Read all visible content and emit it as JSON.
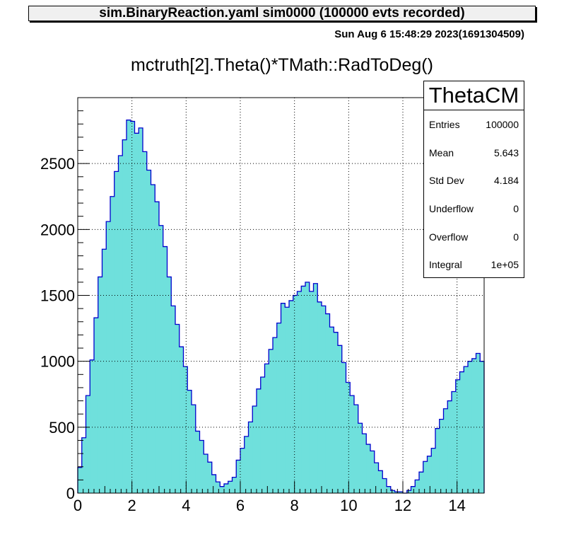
{
  "canvas": {
    "title": "sim.BinaryReaction.yaml  sim0000 (100000 evts recorded)",
    "timestamp": "Sun Aug  6 15:48:29 2023(1691304509)"
  },
  "stats_box": {
    "name": "ThetaCM",
    "rows": [
      {
        "label": "Entries",
        "value": "100000"
      },
      {
        "label": "Mean",
        "value": "5.643"
      },
      {
        "label": "Std Dev",
        "value": "4.184"
      },
      {
        "label": "Underflow",
        "value": "0"
      },
      {
        "label": "Overflow",
        "value": "0"
      },
      {
        "label": "Integral",
        "value": "1e+05"
      }
    ]
  },
  "colors": {
    "fill": "#6fe0dc",
    "line": "#0000cc",
    "grid": "#000000"
  },
  "chart_data": {
    "type": "bar",
    "title": "mctruth[2].Theta()*TMath::RadToDeg()",
    "xlim": [
      0,
      15
    ],
    "ylim": [
      0,
      3000
    ],
    "grid": true,
    "x_ticks": [
      0,
      2,
      4,
      6,
      8,
      10,
      12,
      14
    ],
    "y_ticks": [
      0,
      500,
      1000,
      1500,
      2000,
      2500
    ],
    "bin_width": 0.15,
    "bin_lows": [
      0,
      0.15,
      0.3,
      0.45,
      0.6,
      0.75,
      0.9,
      1.05,
      1.2,
      1.35,
      1.5,
      1.65,
      1.8,
      1.95,
      2.1,
      2.25,
      2.4,
      2.55,
      2.7,
      2.85,
      3.0,
      3.15,
      3.3,
      3.45,
      3.6,
      3.75,
      3.9,
      4.05,
      4.2,
      4.35,
      4.5,
      4.65,
      4.8,
      4.95,
      5.1,
      5.25,
      5.4,
      5.55,
      5.7,
      5.85,
      6.0,
      6.15,
      6.3,
      6.45,
      6.6,
      6.75,
      6.9,
      7.05,
      7.2,
      7.35,
      7.5,
      7.65,
      7.8,
      7.95,
      8.1,
      8.25,
      8.4,
      8.55,
      8.7,
      8.85,
      9.0,
      9.15,
      9.3,
      9.45,
      9.6,
      9.75,
      9.9,
      10.05,
      10.2,
      10.35,
      10.5,
      10.65,
      10.8,
      10.95,
      11.1,
      11.25,
      11.4,
      11.55,
      11.7,
      11.85,
      12.0,
      12.15,
      12.3,
      12.45,
      12.6,
      12.75,
      12.9,
      13.05,
      13.2,
      13.35,
      13.5,
      13.65,
      13.8,
      13.95,
      14.1,
      14.25,
      14.4,
      14.55,
      14.7,
      14.85
    ],
    "values": [
      195,
      420,
      740,
      1010,
      1330,
      1640,
      1850,
      2060,
      2250,
      2440,
      2560,
      2680,
      2830,
      2820,
      2730,
      2770,
      2590,
      2450,
      2340,
      2210,
      2030,
      1870,
      1640,
      1420,
      1280,
      1110,
      960,
      780,
      670,
      470,
      400,
      295,
      235,
      140,
      85,
      50,
      70,
      90,
      120,
      250,
      340,
      430,
      540,
      660,
      790,
      880,
      980,
      1090,
      1180,
      1290,
      1440,
      1410,
      1460,
      1500,
      1530,
      1570,
      1600,
      1530,
      1590,
      1450,
      1420,
      1360,
      1260,
      1220,
      1120,
      990,
      840,
      740,
      670,
      530,
      450,
      370,
      320,
      230,
      170,
      110,
      50,
      20,
      10,
      10,
      0,
      20,
      50,
      100,
      160,
      240,
      280,
      340,
      490,
      560,
      640,
      700,
      770,
      860,
      920,
      960,
      1000,
      1020,
      1060,
      1000
    ]
  }
}
